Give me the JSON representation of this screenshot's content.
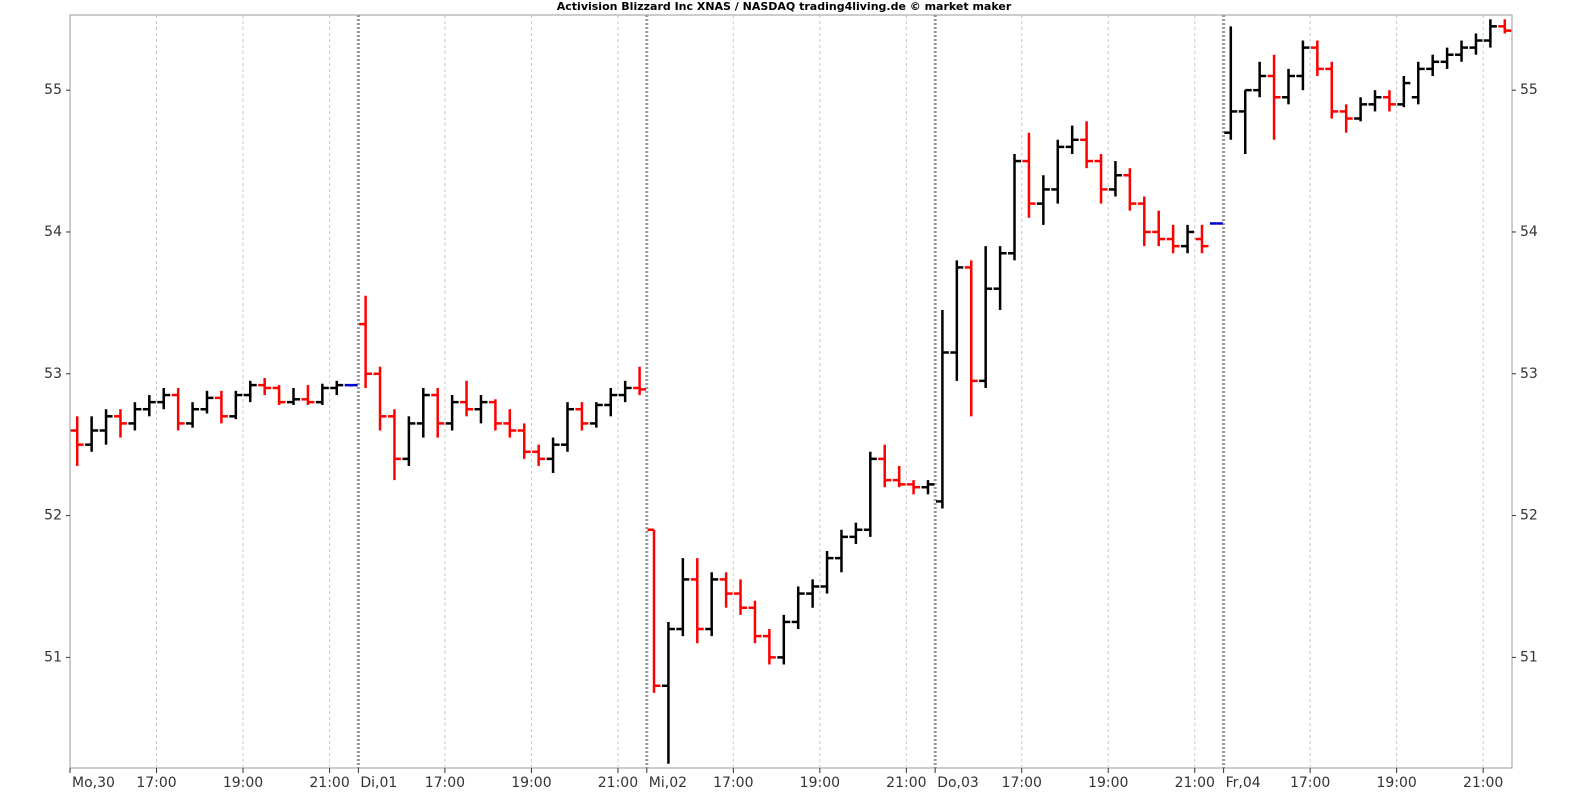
{
  "chart_data": {
    "type": "ohlc",
    "title": "Activision Blizzard Inc XNAS / NASDAQ trading4living.de © market maker",
    "up_color": "#000000",
    "down_color": "#ff0000",
    "flat_color": "#0000cc",
    "ylim": [
      50.22,
      55.53
    ],
    "yticks": [
      51,
      52,
      53,
      54,
      55
    ],
    "xlim": [
      0,
      100
    ],
    "xticks": [
      {
        "value": 0,
        "label": "Mo,30"
      },
      {
        "value": 6,
        "label": "17:00"
      },
      {
        "value": 12,
        "label": "19:00"
      },
      {
        "value": 18,
        "label": "21:00"
      },
      {
        "value": 20,
        "label": "Di,01"
      },
      {
        "value": 26,
        "label": "17:00"
      },
      {
        "value": 32,
        "label": "19:00"
      },
      {
        "value": 38,
        "label": "21:00"
      },
      {
        "value": 40,
        "label": "Mi,02"
      },
      {
        "value": 46,
        "label": "17:00"
      },
      {
        "value": 52,
        "label": "19:00"
      },
      {
        "value": 58,
        "label": "21:00"
      },
      {
        "value": 60,
        "label": "Do,03"
      },
      {
        "value": 66,
        "label": "17:00"
      },
      {
        "value": 72,
        "label": "19:00"
      },
      {
        "value": 78,
        "label": "21:00"
      },
      {
        "value": 80,
        "label": "Fr,04"
      },
      {
        "value": 86,
        "label": "17:00"
      },
      {
        "value": 92,
        "label": "19:00"
      },
      {
        "value": 98,
        "label": "21:00"
      }
    ],
    "xgrid": true,
    "ohlc": [
      [
        52.6,
        52.7,
        52.35,
        52.5
      ],
      [
        52.5,
        52.7,
        52.45,
        52.6
      ],
      [
        52.6,
        52.75,
        52.5,
        52.7
      ],
      [
        52.7,
        52.75,
        52.55,
        52.65
      ],
      [
        52.65,
        52.8,
        52.6,
        52.75
      ],
      [
        52.75,
        52.85,
        52.7,
        52.8
      ],
      [
        52.8,
        52.9,
        52.75,
        52.85
      ],
      [
        52.85,
        52.9,
        52.6,
        52.65
      ],
      [
        52.65,
        52.8,
        52.62,
        52.75
      ],
      [
        52.75,
        52.88,
        52.72,
        52.83
      ],
      [
        52.83,
        52.88,
        52.65,
        52.7
      ],
      [
        52.7,
        52.88,
        52.68,
        52.85
      ],
      [
        52.85,
        52.95,
        52.8,
        52.92
      ],
      [
        52.92,
        52.97,
        52.85,
        52.9
      ],
      [
        52.9,
        52.92,
        52.78,
        52.8
      ],
      [
        52.8,
        52.9,
        52.78,
        52.82
      ],
      [
        52.82,
        52.92,
        52.78,
        52.8
      ],
      [
        52.8,
        52.93,
        52.78,
        52.9
      ],
      [
        52.9,
        52.95,
        52.85,
        52.92
      ],
      [
        52.92,
        52.92,
        52.91,
        52.92
      ],
      [
        53.35,
        53.55,
        52.9,
        53.0
      ],
      [
        53.0,
        53.05,
        52.6,
        52.7
      ],
      [
        52.7,
        52.75,
        52.25,
        52.4
      ],
      [
        52.4,
        52.7,
        52.35,
        52.65
      ],
      [
        52.65,
        52.9,
        52.55,
        52.85
      ],
      [
        52.85,
        52.9,
        52.55,
        52.65
      ],
      [
        52.65,
        52.85,
        52.6,
        52.8
      ],
      [
        52.8,
        52.95,
        52.7,
        52.75
      ],
      [
        52.75,
        52.85,
        52.65,
        52.8
      ],
      [
        52.8,
        52.82,
        52.6,
        52.65
      ],
      [
        52.65,
        52.75,
        52.55,
        52.6
      ],
      [
        52.6,
        52.65,
        52.4,
        52.45
      ],
      [
        52.45,
        52.5,
        52.35,
        52.4
      ],
      [
        52.4,
        52.55,
        52.3,
        52.5
      ],
      [
        52.5,
        52.8,
        52.45,
        52.75
      ],
      [
        52.75,
        52.8,
        52.6,
        52.65
      ],
      [
        52.65,
        52.8,
        52.62,
        52.78
      ],
      [
        52.78,
        52.9,
        52.7,
        52.85
      ],
      [
        52.85,
        52.95,
        52.8,
        52.9
      ],
      [
        52.9,
        53.05,
        52.85,
        52.89
      ],
      [
        51.9,
        51.9,
        50.75,
        50.8
      ],
      [
        50.8,
        51.25,
        50.25,
        51.2
      ],
      [
        51.2,
        51.7,
        51.15,
        51.55
      ],
      [
        51.55,
        51.7,
        51.1,
        51.2
      ],
      [
        51.2,
        51.6,
        51.15,
        51.55
      ],
      [
        51.55,
        51.6,
        51.35,
        51.45
      ],
      [
        51.45,
        51.55,
        51.3,
        51.35
      ],
      [
        51.35,
        51.4,
        51.1,
        51.15
      ],
      [
        51.15,
        51.2,
        50.95,
        51.0
      ],
      [
        51.0,
        51.3,
        50.95,
        51.25
      ],
      [
        51.25,
        51.5,
        51.2,
        51.45
      ],
      [
        51.45,
        51.55,
        51.35,
        51.5
      ],
      [
        51.5,
        51.75,
        51.45,
        51.7
      ],
      [
        51.7,
        51.9,
        51.6,
        51.85
      ],
      [
        51.85,
        51.95,
        51.8,
        51.9
      ],
      [
        51.9,
        52.45,
        51.85,
        52.4
      ],
      [
        52.4,
        52.5,
        52.2,
        52.25
      ],
      [
        52.25,
        52.35,
        52.2,
        52.22
      ],
      [
        52.22,
        52.25,
        52.15,
        52.2
      ],
      [
        52.2,
        52.25,
        52.15,
        52.22
      ],
      [
        52.1,
        53.45,
        52.05,
        53.15
      ],
      [
        53.15,
        53.8,
        52.95,
        53.75
      ],
      [
        53.75,
        53.8,
        52.7,
        52.95
      ],
      [
        52.95,
        53.9,
        52.9,
        53.6
      ],
      [
        53.6,
        53.9,
        53.45,
        53.85
      ],
      [
        53.85,
        54.55,
        53.8,
        54.5
      ],
      [
        54.5,
        54.7,
        54.1,
        54.2
      ],
      [
        54.2,
        54.4,
        54.05,
        54.3
      ],
      [
        54.3,
        54.65,
        54.2,
        54.6
      ],
      [
        54.6,
        54.75,
        54.55,
        54.65
      ],
      [
        54.65,
        54.78,
        54.45,
        54.5
      ],
      [
        54.5,
        54.55,
        54.2,
        54.3
      ],
      [
        54.3,
        54.5,
        54.25,
        54.4
      ],
      [
        54.4,
        54.45,
        54.15,
        54.2
      ],
      [
        54.2,
        54.25,
        53.9,
        54.0
      ],
      [
        54.0,
        54.15,
        53.9,
        53.95
      ],
      [
        53.95,
        54.05,
        53.85,
        53.9
      ],
      [
        53.9,
        54.05,
        53.85,
        54.0
      ],
      [
        53.95,
        54.05,
        53.85,
        53.9
      ],
      [
        54.06,
        54.06,
        54.06,
        54.06
      ],
      [
        54.7,
        55.45,
        54.65,
        54.85
      ],
      [
        54.85,
        55.0,
        54.55,
        55.0
      ],
      [
        55.0,
        55.2,
        54.95,
        55.1
      ],
      [
        55.1,
        55.25,
        54.65,
        54.95
      ],
      [
        54.95,
        55.15,
        54.9,
        55.1
      ],
      [
        55.1,
        55.35,
        55.0,
        55.3
      ],
      [
        55.3,
        55.35,
        55.1,
        55.15
      ],
      [
        55.15,
        55.2,
        54.8,
        54.85
      ],
      [
        54.85,
        54.9,
        54.7,
        54.8
      ],
      [
        54.8,
        54.95,
        54.78,
        54.9
      ],
      [
        54.9,
        55.0,
        54.85,
        54.95
      ],
      [
        54.95,
        55.0,
        54.85,
        54.9
      ],
      [
        54.9,
        55.1,
        54.88,
        55.05
      ],
      [
        54.95,
        55.2,
        54.9,
        55.15
      ],
      [
        55.15,
        55.25,
        55.1,
        55.2
      ],
      [
        55.2,
        55.3,
        55.15,
        55.25
      ],
      [
        55.25,
        55.35,
        55.2,
        55.3
      ],
      [
        55.3,
        55.4,
        55.25,
        55.35
      ],
      [
        55.35,
        55.5,
        55.3,
        55.45
      ],
      [
        55.45,
        55.5,
        55.4,
        55.42
      ]
    ]
  }
}
